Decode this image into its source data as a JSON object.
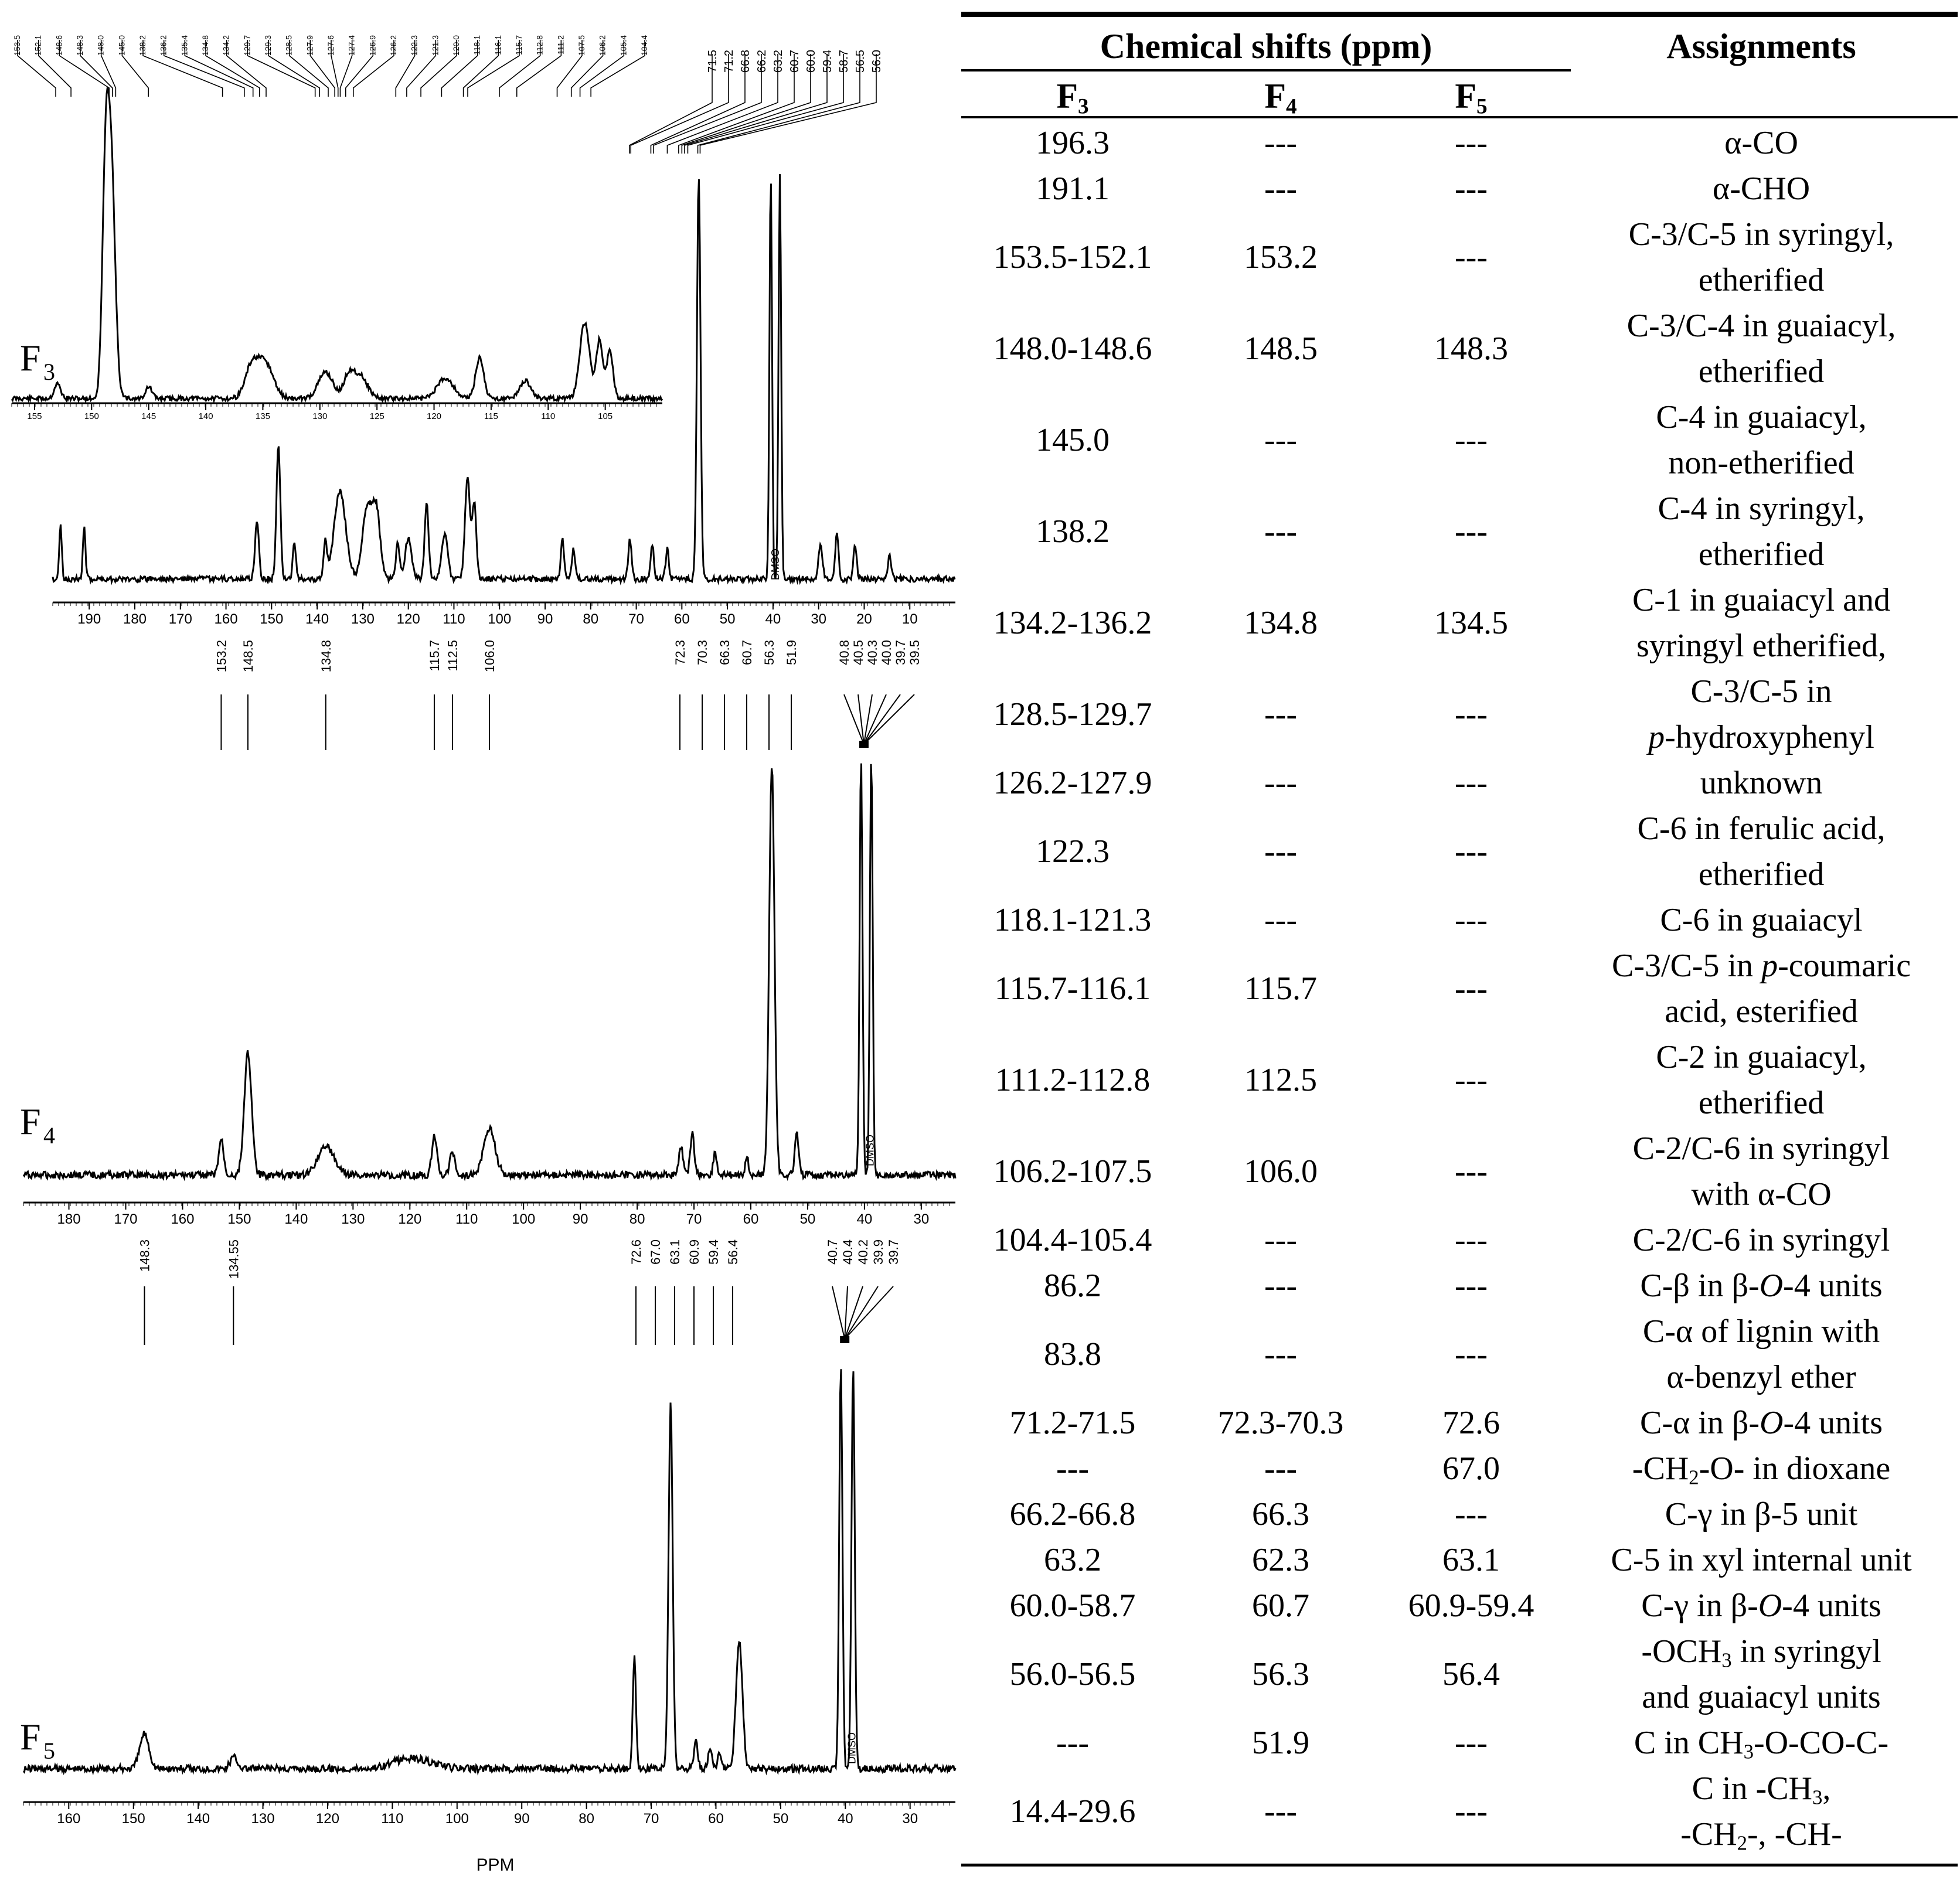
{
  "panels": [
    {
      "label": "F3",
      "axis_ticks": [
        190,
        180,
        170,
        160,
        150,
        140,
        130,
        120,
        110,
        100,
        90,
        80,
        70,
        60,
        50,
        40,
        30,
        20,
        10
      ],
      "inset_ticks": [
        155,
        150,
        145,
        140,
        135,
        130,
        125,
        120,
        115,
        110,
        105
      ],
      "peak_labels": [
        "153.5",
        "152.1",
        "148.6",
        "148.3",
        "148.0",
        "145.0",
        "138.2",
        "136.2",
        "135.4",
        "134.8",
        "134.2",
        "129.7",
        "129.3",
        "128.5",
        "127.9",
        "127.6",
        "127.4",
        "126.9",
        "126.2",
        "122.3",
        "121.3",
        "120.0",
        "118.1",
        "116.1",
        "115.7",
        "112.8",
        "111.2",
        "107.5",
        "106.2",
        "105.4",
        "104.4"
      ],
      "peak_labels_right": [
        "71.5",
        "71.2",
        "66.8",
        "66.2",
        "63.2",
        "60.7",
        "60.0",
        "59.4",
        "58.7",
        "56.5",
        "56.0"
      ],
      "solvent_label": "DMSO"
    },
    {
      "label": "F4",
      "peak_labels": [
        "153.2",
        "148.5",
        "134.8",
        "115.7",
        "112.5",
        "106.0",
        "72.3",
        "70.3",
        "66.3",
        "60.7",
        "56.3",
        "51.9",
        "40.8",
        "40.5",
        "40.3",
        "40.0",
        "39.7",
        "39.5"
      ],
      "axis_ticks": [
        180,
        170,
        160,
        150,
        140,
        130,
        120,
        110,
        100,
        90,
        80,
        70,
        60,
        50,
        40,
        30
      ],
      "solvent_label": "DMSO"
    },
    {
      "label": "F5",
      "peak_labels": [
        "148.3",
        "134.55",
        "72.6",
        "67.0",
        "63.1",
        "60.9",
        "59.4",
        "56.4",
        "40.7",
        "40.4",
        "40.2",
        "39.9",
        "39.7"
      ],
      "axis_ticks": [
        160,
        150,
        140,
        130,
        120,
        110,
        100,
        90,
        80,
        70,
        60,
        50,
        40,
        30
      ],
      "solvent_label": "DMSO",
      "axis_title": "PPM"
    }
  ],
  "table": {
    "header_group": "Chemical shifts (ppm)",
    "header_assign": "Assignments",
    "columns": [
      "F3",
      "F4",
      "F5"
    ],
    "rows": [
      {
        "f3": "196.3",
        "f4": "---",
        "f5": "---",
        "assign": [
          "α-CO"
        ]
      },
      {
        "f3": "191.1",
        "f4": "---",
        "f5": "---",
        "assign": [
          "α-CHO"
        ]
      },
      {
        "f3": "153.5-152.1",
        "f4": "153.2",
        "f5": "---",
        "assign": [
          "C-3/C-5 in syringyl,",
          "etherified"
        ]
      },
      {
        "f3": "148.0-148.6",
        "f4": "148.5",
        "f5": "148.3",
        "assign": [
          "C-3/C-4 in guaiacyl,",
          "etherified"
        ]
      },
      {
        "f3": "145.0",
        "f4": "---",
        "f5": "---",
        "assign": [
          "C-4 in guaiacyl,",
          "non-etherified"
        ]
      },
      {
        "f3": "138.2",
        "f4": "---",
        "f5": "---",
        "assign": [
          "C-4 in syringyl,",
          "etherified"
        ]
      },
      {
        "f3": "134.2-136.2",
        "f4": "134.8",
        "f5": "134.5",
        "assign": [
          "C-1 in guaiacyl and",
          "syringyl etherified,"
        ]
      },
      {
        "f3": "128.5-129.7",
        "f4": "---",
        "f5": "---",
        "assign": [
          "C-3/C-5 in",
          "p-hydroxyphenyl"
        ]
      },
      {
        "f3": "126.2-127.9",
        "f4": "---",
        "f5": "---",
        "assign": [
          "unknown"
        ]
      },
      {
        "f3": "122.3",
        "f4": "---",
        "f5": "---",
        "assign": [
          "C-6 in ferulic acid,",
          "etherified"
        ]
      },
      {
        "f3": "118.1-121.3",
        "f4": "---",
        "f5": "---",
        "assign": [
          "C-6 in guaiacyl"
        ]
      },
      {
        "f3": "115.7-116.1",
        "f4": "115.7",
        "f5": "---",
        "assign": [
          "C-3/C-5 in p-coumaric",
          "acid, esterified"
        ]
      },
      {
        "f3": "111.2-112.8",
        "f4": "112.5",
        "f5": "---",
        "assign": [
          "C-2 in guaiacyl,",
          "etherified"
        ]
      },
      {
        "f3": "106.2-107.5",
        "f4": "106.0",
        "f5": "---",
        "assign": [
          "C-2/C-6 in syringyl",
          "with α-CO"
        ]
      },
      {
        "f3": "104.4-105.4",
        "f4": "---",
        "f5": "---",
        "assign": [
          "C-2/C-6 in syringyl"
        ]
      },
      {
        "f3": "86.2",
        "f4": "---",
        "f5": "---",
        "assign": [
          "C-β in β-O-4 units"
        ]
      },
      {
        "f3": "83.8",
        "f4": "---",
        "f5": "---",
        "assign": [
          "C-α of lignin with",
          "α-benzyl ether"
        ]
      },
      {
        "f3": "71.2-71.5",
        "f4": "72.3-70.3",
        "f5": "72.6",
        "assign": [
          "C-α in β-O-4 units"
        ]
      },
      {
        "f3": "---",
        "f4": "---",
        "f5": "67.0",
        "assign": [
          "-CH2-O- in dioxane"
        ]
      },
      {
        "f3": "66.2-66.8",
        "f4": "66.3",
        "f5": "---",
        "assign": [
          "C-γ in β-5 unit"
        ]
      },
      {
        "f3": "63.2",
        "f4": "62.3",
        "f5": "63.1",
        "assign": [
          "C-5 in xyl internal unit"
        ]
      },
      {
        "f3": "60.0-58.7",
        "f4": "60.7",
        "f5": "60.9-59.4",
        "assign": [
          "C-γ in β-O-4 units"
        ]
      },
      {
        "f3": "56.0-56.5",
        "f4": "56.3",
        "f5": "56.4",
        "assign": [
          "-OCH3 in syringyl",
          "and guaiacyl units"
        ]
      },
      {
        "f3": "---",
        "f4": "51.9",
        "f5": "---",
        "assign": [
          "C in CH3-O-CO-C-"
        ]
      },
      {
        "f3": "14.4-29.6",
        "f4": "---",
        "f5": "---",
        "assign": [
          "C in -CH3,",
          "-CH2-, -CH-"
        ]
      }
    ]
  }
}
